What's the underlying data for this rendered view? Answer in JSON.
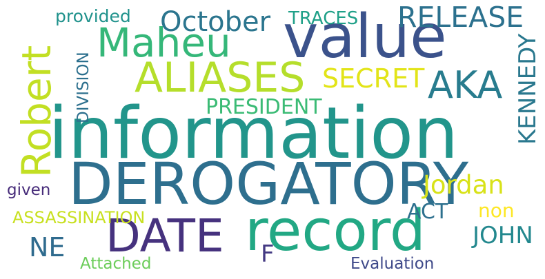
{
  "words": [
    {
      "id": "information",
      "text": "information",
      "color": "#22958b"
    },
    {
      "id": "derogatory",
      "text": "DEROGATORY",
      "color": "#2e6f8e"
    },
    {
      "id": "value",
      "text": "value",
      "color": "#3b528b"
    },
    {
      "id": "record",
      "text": "record",
      "color": "#22a884"
    },
    {
      "id": "date",
      "text": "DATE",
      "color": "#46327e"
    },
    {
      "id": "aliases",
      "text": "ALIASES",
      "color": "#b5de2b"
    },
    {
      "id": "robert",
      "text": "Robert",
      "color": "#c2df23"
    },
    {
      "id": "maheu",
      "text": "Maheu",
      "color": "#35b779"
    },
    {
      "id": "aka",
      "text": "AKA",
      "color": "#287c8e"
    },
    {
      "id": "october",
      "text": "October",
      "color": "#2b758e"
    },
    {
      "id": "release",
      "text": "RELEASE",
      "color": "#2c718e"
    },
    {
      "id": "secret",
      "text": "SECRET",
      "color": "#e2e418"
    },
    {
      "id": "president",
      "text": "PRESIDENT",
      "color": "#3bbb75"
    },
    {
      "id": "kennedy",
      "text": "KENNEDY",
      "color": "#2a788e"
    },
    {
      "id": "jordan",
      "text": "Jordan",
      "color": "#d8e219"
    },
    {
      "id": "john",
      "text": "JOHN",
      "color": "#23888e"
    },
    {
      "id": "ne",
      "text": "NE",
      "color": "#2f6b8e"
    },
    {
      "id": "assassination",
      "text": "ASSASSINATION",
      "color": "#c8e020"
    },
    {
      "id": "provided",
      "text": "provided",
      "color": "#20928c"
    },
    {
      "id": "traces",
      "text": "TRACES",
      "color": "#1fa088"
    },
    {
      "id": "division",
      "text": "DIVISION",
      "color": "#2d708e"
    },
    {
      "id": "given",
      "text": "given",
      "color": "#472c7a"
    },
    {
      "id": "act",
      "text": "ACT",
      "color": "#2d708e"
    },
    {
      "id": "non",
      "text": "non",
      "color": "#fde725"
    },
    {
      "id": "f",
      "text": "F",
      "color": "#443a83"
    },
    {
      "id": "attached",
      "text": "Attached",
      "color": "#6ccd5a"
    },
    {
      "id": "evaluation",
      "text": "Evaluation",
      "color": "#3e4989"
    }
  ]
}
